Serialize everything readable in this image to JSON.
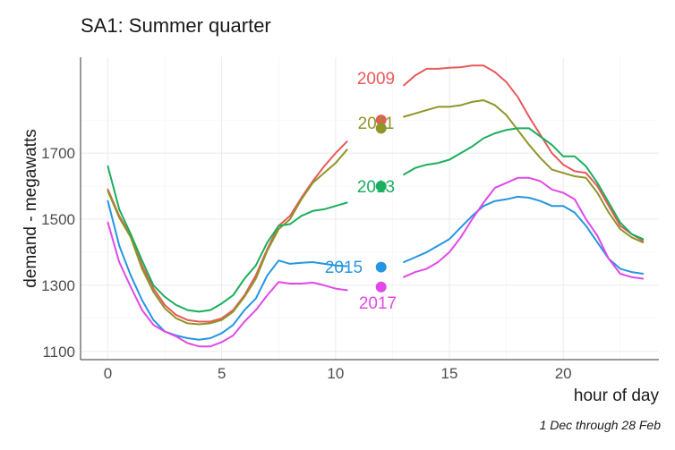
{
  "chart_data": {
    "type": "line",
    "title": "SA1: Summer quarter",
    "xlabel": "hour of day",
    "ylabel": "demand - megawatts",
    "caption": "1 Dec through 28 Feb",
    "xlim": [
      -1.2,
      24.2
    ],
    "ylim": [
      1075,
      1990
    ],
    "x_ticks": [
      0,
      5,
      10,
      15,
      20
    ],
    "y_ticks": [
      1100,
      1300,
      1500,
      1700
    ],
    "grid": true,
    "legend": "direct labels at hour 12",
    "x": [
      0,
      0.5,
      1,
      1.5,
      2,
      2.5,
      3,
      3.5,
      4,
      4.5,
      5,
      5.5,
      6,
      6.5,
      7,
      7.5,
      8,
      8.5,
      9,
      9.5,
      10,
      10.5,
      11,
      11.5,
      12,
      12.5,
      13,
      13.5,
      14,
      14.5,
      15,
      15.5,
      16,
      16.5,
      17,
      17.5,
      18,
      18.5,
      19,
      19.5,
      20,
      20.5,
      21,
      21.5,
      22,
      22.5,
      23,
      23.5
    ],
    "series": [
      {
        "name": "2009",
        "color": "#E8595B",
        "label_x": 12,
        "values": [
          1590,
          1510,
          1450,
          1360,
          1290,
          1240,
          1210,
          1195,
          1190,
          1190,
          1200,
          1225,
          1270,
          1330,
          1410,
          1480,
          1510,
          1565,
          1615,
          1660,
          1700,
          1735,
          1765,
          1790,
          1800,
          1850,
          1905,
          1935,
          1955,
          1955,
          1958,
          1960,
          1965,
          1965,
          1945,
          1915,
          1870,
          1810,
          1755,
          1700,
          1665,
          1645,
          1640,
          1600,
          1540,
          1480,
          1455,
          1435
        ]
      },
      {
        "name": "2011",
        "color": "#8F9527",
        "label_x": 12,
        "values": [
          1585,
          1505,
          1445,
          1350,
          1280,
          1230,
          1200,
          1185,
          1182,
          1185,
          1195,
          1220,
          1265,
          1320,
          1405,
          1470,
          1500,
          1560,
          1610,
          1640,
          1670,
          1710,
          1750,
          1770,
          1775,
          1790,
          1810,
          1820,
          1830,
          1840,
          1840,
          1845,
          1855,
          1860,
          1845,
          1815,
          1770,
          1725,
          1685,
          1650,
          1640,
          1630,
          1625,
          1580,
          1520,
          1470,
          1445,
          1430
        ]
      },
      {
        "name": "2013",
        "color": "#1BAE5E",
        "label_x": 12,
        "values": [
          1660,
          1530,
          1455,
          1375,
          1300,
          1265,
          1240,
          1225,
          1220,
          1225,
          1245,
          1270,
          1320,
          1360,
          1430,
          1480,
          1485,
          1510,
          1525,
          1530,
          1540,
          1550,
          1565,
          1585,
          1600,
          1615,
          1635,
          1655,
          1665,
          1670,
          1680,
          1700,
          1720,
          1745,
          1760,
          1770,
          1775,
          1775,
          1750,
          1725,
          1690,
          1690,
          1660,
          1610,
          1550,
          1490,
          1455,
          1440
        ]
      },
      {
        "name": "2015",
        "color": "#2496E1",
        "label_x": 12,
        "values": [
          1555,
          1420,
          1330,
          1255,
          1195,
          1160,
          1148,
          1140,
          1135,
          1140,
          1155,
          1180,
          1225,
          1260,
          1330,
          1375,
          1365,
          1368,
          1370,
          1365,
          1360,
          1358,
          1356,
          1355,
          1355,
          1360,
          1370,
          1385,
          1400,
          1420,
          1440,
          1475,
          1510,
          1540,
          1555,
          1560,
          1568,
          1565,
          1555,
          1540,
          1540,
          1520,
          1480,
          1430,
          1380,
          1350,
          1340,
          1335
        ]
      },
      {
        "name": "2017",
        "color": "#E149E7",
        "label_x": 12,
        "values": [
          1490,
          1370,
          1295,
          1225,
          1180,
          1160,
          1145,
          1125,
          1115,
          1115,
          1128,
          1148,
          1190,
          1225,
          1270,
          1310,
          1305,
          1305,
          1308,
          1300,
          1290,
          1285,
          1283,
          1290,
          1295,
          1310,
          1325,
          1340,
          1350,
          1370,
          1400,
          1445,
          1500,
          1550,
          1595,
          1610,
          1625,
          1625,
          1615,
          1590,
          1580,
          1560,
          1500,
          1450,
          1380,
          1335,
          1325,
          1320
        ]
      }
    ]
  }
}
